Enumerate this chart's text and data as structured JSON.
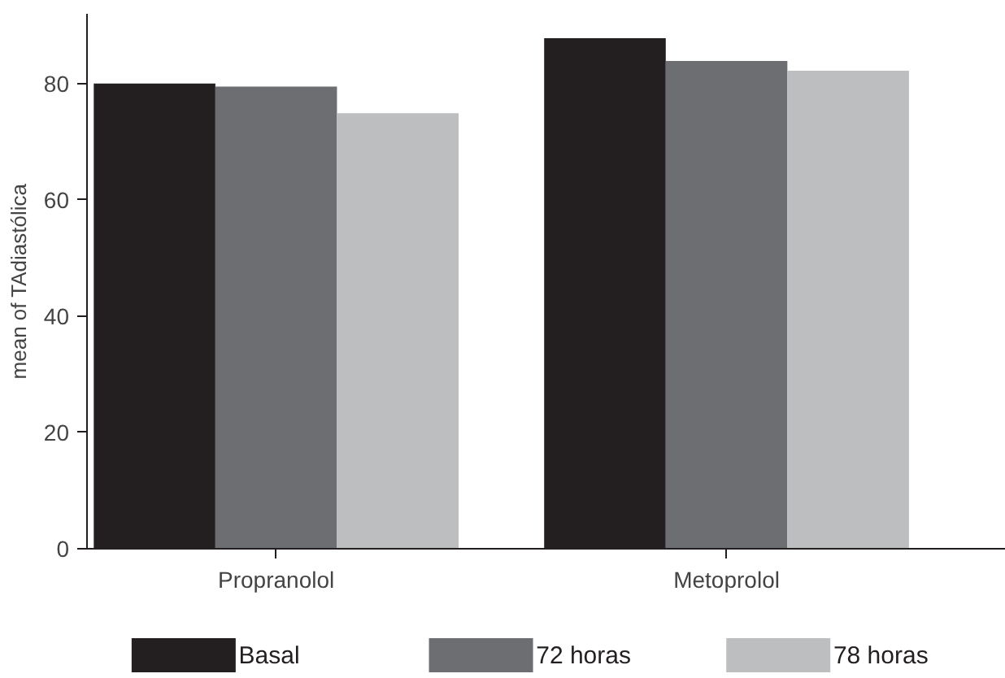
{
  "chart_data": {
    "type": "bar",
    "ylabel": "mean of TAdiastólica",
    "categories": [
      "Propranolol",
      "Metoprolol"
    ],
    "series": [
      {
        "name": "Basal",
        "color": "#231f20",
        "values": [
          80.0,
          87.8
        ]
      },
      {
        "name": "72 horas",
        "color": "#6d6e71",
        "values": [
          79.5,
          83.9
        ]
      },
      {
        "name": "78 horas",
        "color": "#bcbec0",
        "values": [
          74.9,
          82.2
        ]
      }
    ],
    "ylim": [
      0,
      92
    ],
    "yticks": [
      0,
      20,
      40,
      60,
      80
    ],
    "grid": false,
    "legend": "bottom"
  }
}
